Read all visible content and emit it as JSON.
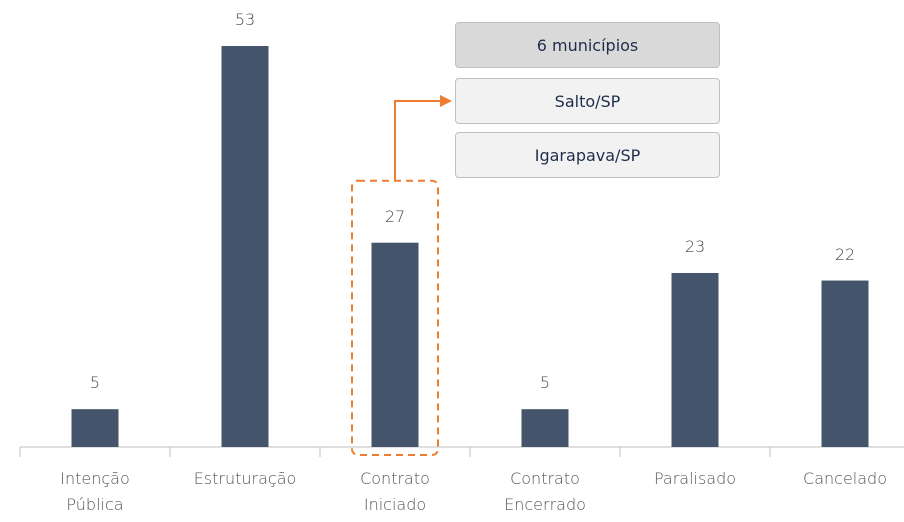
{
  "chart_data": {
    "type": "bar",
    "categories": [
      "Intenção Pública",
      "Estruturação",
      "Contrato Iniciado",
      "Contrato Encerrado",
      "Paralisado",
      "Cancelado"
    ],
    "values": [
      5,
      53,
      27,
      5,
      23,
      22
    ],
    "color": "#44546a",
    "highlight_color": "#ed7d31",
    "annotation": {
      "title": "6 municípios",
      "items": [
        "Salto/SP",
        "Igarapava/SP"
      ]
    }
  }
}
